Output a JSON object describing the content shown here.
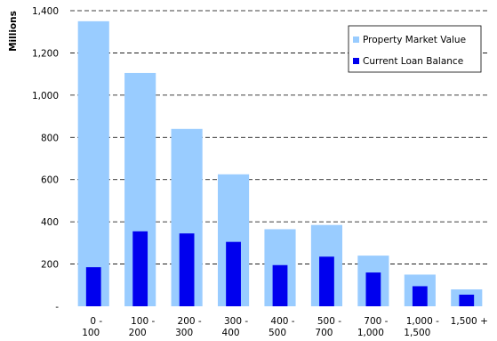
{
  "chart_data": {
    "type": "bar",
    "ylabel": "Millions",
    "ylim": [
      0,
      1400
    ],
    "y_ticks": [
      {
        "value": 0,
        "label": "-"
      },
      {
        "value": 200,
        "label": "200"
      },
      {
        "value": 400,
        "label": "400"
      },
      {
        "value": 600,
        "label": "600"
      },
      {
        "value": 800,
        "label": "800"
      },
      {
        "value": 1000,
        "label": "1,000"
      },
      {
        "value": 1200,
        "label": "1,200"
      },
      {
        "value": 1400,
        "label": "1,400"
      }
    ],
    "grid": "horizontal dashed",
    "legend_position": "top-right",
    "categories": [
      [
        "0 -",
        "100"
      ],
      [
        "100 -",
        "200"
      ],
      [
        "200 -",
        "300"
      ],
      [
        "300 -",
        "400"
      ],
      [
        "400 -",
        "500"
      ],
      [
        "500 -",
        "700"
      ],
      [
        "700 -",
        "1,000"
      ],
      [
        "1,000 -",
        "1,500"
      ],
      [
        "1,500 +",
        ""
      ]
    ],
    "series": [
      {
        "name": "Property Market Value",
        "color": "#99ccff",
        "values": [
          1350,
          1105,
          840,
          625,
          365,
          385,
          240,
          150,
          80
        ]
      },
      {
        "name": "Current Loan Balance",
        "color": "#0000ee",
        "values": [
          185,
          355,
          345,
          305,
          195,
          235,
          160,
          95,
          55
        ]
      }
    ]
  }
}
